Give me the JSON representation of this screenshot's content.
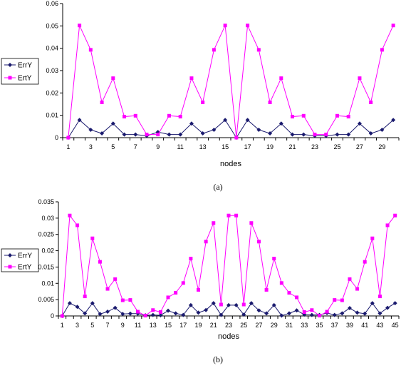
{
  "chart_data": [
    {
      "type": "line",
      "caption": "(a)",
      "xlabel": "nodes",
      "ylabel": "",
      "x": [
        1,
        2,
        3,
        4,
        5,
        6,
        7,
        8,
        9,
        10,
        11,
        12,
        13,
        14,
        15,
        16,
        17,
        18,
        19,
        20,
        21,
        22,
        23,
        24,
        25,
        26,
        27,
        28,
        29,
        30
      ],
      "xticks": [
        1,
        3,
        5,
        7,
        9,
        11,
        13,
        15,
        17,
        19,
        21,
        23,
        25,
        27,
        29
      ],
      "ylim": [
        0,
        0.06
      ],
      "yticks": [
        "0",
        "0.01",
        "0.02",
        "0.03",
        "0.04",
        "0.05",
        "0.06"
      ],
      "grid": false,
      "legend_position": "left",
      "series": [
        {
          "name": "ErrY",
          "color": "#1a1a6e",
          "marker": "diamond",
          "values": [
            0,
            0.0079,
            0.0035,
            0.0019,
            0.0063,
            0.0014,
            0.0014,
            0.0008,
            0.0025,
            0.0014,
            0.0014,
            0.0063,
            0.0019,
            0.0035,
            0.0079,
            0,
            0.0079,
            0.0035,
            0.0019,
            0.0063,
            0.0014,
            0.0014,
            0.0008,
            0.0008,
            0.0014,
            0.0014,
            0.0063,
            0.0019,
            0.0035,
            0.0079
          ]
        },
        {
          "name": "ErtY",
          "color": "#ff00ff",
          "marker": "square",
          "values": [
            0,
            0.0502,
            0.0393,
            0.0158,
            0.0266,
            0.0094,
            0.0098,
            0.0014,
            0.0014,
            0.0098,
            0.0094,
            0.0266,
            0.0158,
            0.0393,
            0.0502,
            0,
            0.0502,
            0.0393,
            0.0158,
            0.0266,
            0.0094,
            0.0098,
            0.0014,
            0.0014,
            0.0098,
            0.0094,
            0.0266,
            0.0158,
            0.0393,
            0.0502
          ]
        }
      ]
    },
    {
      "type": "line",
      "caption": "(b)",
      "xlabel": "nodes",
      "ylabel": "",
      "x": [
        1,
        2,
        3,
        4,
        5,
        6,
        7,
        8,
        9,
        10,
        11,
        12,
        13,
        14,
        15,
        16,
        17,
        18,
        19,
        20,
        21,
        22,
        23,
        24,
        25,
        26,
        27,
        28,
        29,
        30,
        31,
        32,
        33,
        34,
        35,
        36,
        37,
        38,
        39,
        40,
        41,
        42,
        43,
        44,
        45
      ],
      "xticks": [
        1,
        3,
        5,
        7,
        9,
        11,
        13,
        15,
        17,
        19,
        21,
        23,
        25,
        27,
        29,
        31,
        33,
        35,
        37,
        39,
        41,
        43,
        45
      ],
      "ylim": [
        0,
        0.035
      ],
      "yticks": [
        "0",
        "0.005",
        "0.01",
        "0.015",
        "0.02",
        "0.025",
        "0.03",
        "0.035"
      ],
      "grid": false,
      "legend_position": "left",
      "series": [
        {
          "name": "ErrY",
          "color": "#1a1a6e",
          "marker": "diamond",
          "values": [
            0,
            0.0039,
            0.0028,
            0.0008,
            0.0039,
            0.0006,
            0.0013,
            0.0025,
            0.0006,
            0.0007,
            0.0007,
            0.0002,
            0.0003,
            0.0002,
            0.0016,
            0.0008,
            0.0003,
            0.0033,
            0.001,
            0.0018,
            0.0039,
            0.0003,
            0.0033,
            0.0033,
            0.0004,
            0.0039,
            0.0017,
            0.0008,
            0.0033,
            0.0001,
            0.0008,
            0.0017,
            0.0004,
            0.0003,
            0.0003,
            0.0009,
            0.0003,
            0.0008,
            0.0024,
            0.001,
            0.0007,
            0.0039,
            0.0008,
            0.0025,
            0.0039
          ]
        },
        {
          "name": "ErtY",
          "color": "#ff00ff",
          "marker": "square",
          "values": [
            0,
            0.0308,
            0.0278,
            0.006,
            0.0238,
            0.0166,
            0.0083,
            0.0113,
            0.0048,
            0.0049,
            0.0013,
            0.0001,
            0.0018,
            0.0012,
            0.0057,
            0.0071,
            0.0101,
            0.0176,
            0.008,
            0.0228,
            0.0285,
            0.0035,
            0.0308,
            0.0308,
            0.0035,
            0.0285,
            0.0228,
            0.008,
            0.0176,
            0.0101,
            0.0071,
            0.0057,
            0.0012,
            0.0018,
            0.0001,
            0.0013,
            0.0049,
            0.0048,
            0.0113,
            0.0083,
            0.0166,
            0.0238,
            0.006,
            0.0278,
            0.0308
          ]
        }
      ]
    }
  ]
}
